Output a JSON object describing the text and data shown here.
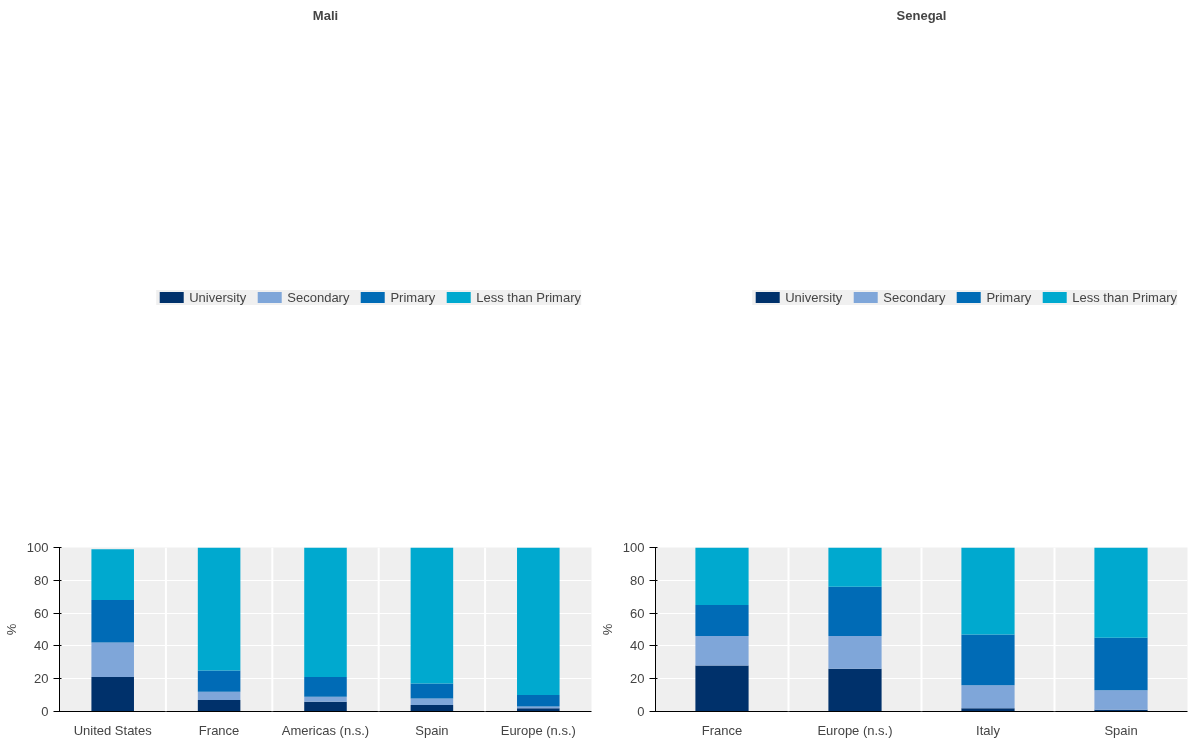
{
  "chart_data": [
    {
      "type": "bar",
      "stacked": true,
      "title": "Mali",
      "ylabel": "%",
      "categories": [
        "United States",
        "France",
        "Americas (n.s.)",
        "Spain",
        "Europe (n.s.)"
      ],
      "ylim": [
        0,
        100
      ],
      "yticks": [
        0,
        20,
        40,
        60,
        80,
        100
      ],
      "grid": "y",
      "legend": "top",
      "series": [
        {
          "name": "University",
          "color": "#00316b",
          "values": [
            21,
            7,
            6,
            4,
            2
          ]
        },
        {
          "name": "Secondary",
          "color": "#7fa6d9",
          "values": [
            21,
            5,
            3,
            4,
            1
          ]
        },
        {
          "name": "Primary",
          "color": "#006bb6",
          "values": [
            26,
            13,
            12,
            9,
            7
          ]
        },
        {
          "name": "Less than Primary",
          "color": "#00a9cf",
          "values": [
            31,
            75,
            79,
            83,
            90
          ]
        }
      ]
    },
    {
      "type": "bar",
      "stacked": true,
      "title": "Senegal",
      "ylabel": "%",
      "categories": [
        "France",
        "Europe (n.s.)",
        "Italy",
        "Spain"
      ],
      "ylim": [
        0,
        100
      ],
      "yticks": [
        0,
        20,
        40,
        60,
        80,
        100
      ],
      "grid": "y",
      "legend": "top",
      "series": [
        {
          "name": "University",
          "color": "#00316b",
          "values": [
            28,
            26,
            2,
            1
          ]
        },
        {
          "name": "Secondary",
          "color": "#7fa6d9",
          "values": [
            18,
            20,
            14,
            12
          ]
        },
        {
          "name": "Primary",
          "color": "#006bb6",
          "values": [
            19,
            30,
            31,
            32
          ]
        },
        {
          "name": "Less than Primary",
          "color": "#00a9cf",
          "values": [
            35,
            24,
            53,
            55
          ]
        }
      ]
    }
  ]
}
